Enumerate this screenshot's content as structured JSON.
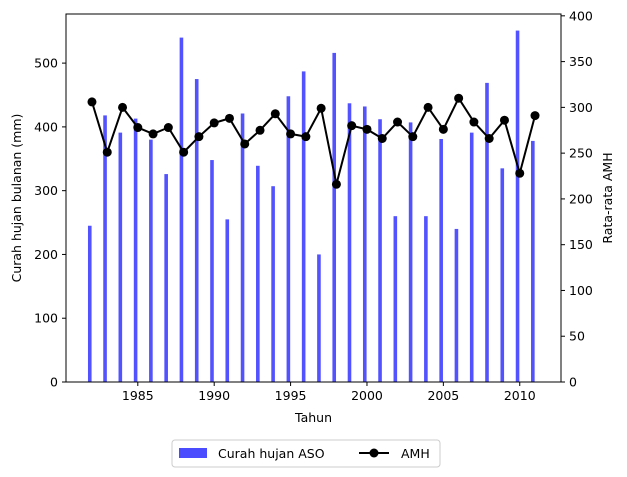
{
  "chart_data": {
    "type": "bar",
    "combo": "bar+line",
    "x": [
      1982,
      1983,
      1984,
      1985,
      1986,
      1987,
      1988,
      1989,
      1990,
      1991,
      1992,
      1993,
      1994,
      1995,
      1996,
      1997,
      1998,
      1999,
      2000,
      2001,
      2002,
      2003,
      2004,
      2005,
      2006,
      2007,
      2008,
      2009,
      2010,
      2011
    ],
    "xlabel": "Tahun",
    "xlim": [
      1980.3,
      1983.0
    ],
    "xticks": [
      1985,
      1990,
      1995,
      2000,
      2005,
      2010
    ],
    "series": [
      {
        "name": "Curah hujan ASO",
        "kind": "bar",
        "axis": "left",
        "color": "#4c4cff",
        "values": [
          245,
          418,
          391,
          413,
          380,
          326,
          540,
          475,
          348,
          255,
          421,
          339,
          307,
          448,
          487,
          200,
          516,
          437,
          432,
          412,
          260,
          407,
          260,
          381,
          240,
          391,
          469,
          335,
          551,
          378
        ]
      },
      {
        "name": "AMH",
        "kind": "line",
        "axis": "right",
        "color": "#000000",
        "marker": "circle",
        "values": [
          306,
          251,
          300,
          278,
          271,
          278,
          251,
          268,
          283,
          288,
          260,
          275,
          293,
          271,
          268,
          299,
          216,
          280,
          276,
          266,
          284,
          268,
          300,
          276,
          310,
          284,
          266,
          286,
          228,
          291
        ]
      }
    ],
    "ylabel_left": "Curah hujan bulanan (mm)",
    "ylim_left": [
      0,
      577
    ],
    "yticks_left": [
      0,
      100,
      200,
      300,
      400,
      500
    ],
    "ylabel_right": "Rata-rata AMH",
    "ylim_right": [
      0,
      402
    ],
    "yticks_right": [
      0,
      50,
      100,
      150,
      200,
      250,
      300,
      350,
      400
    ],
    "legend_position": "bottom-center",
    "grid": false
  }
}
